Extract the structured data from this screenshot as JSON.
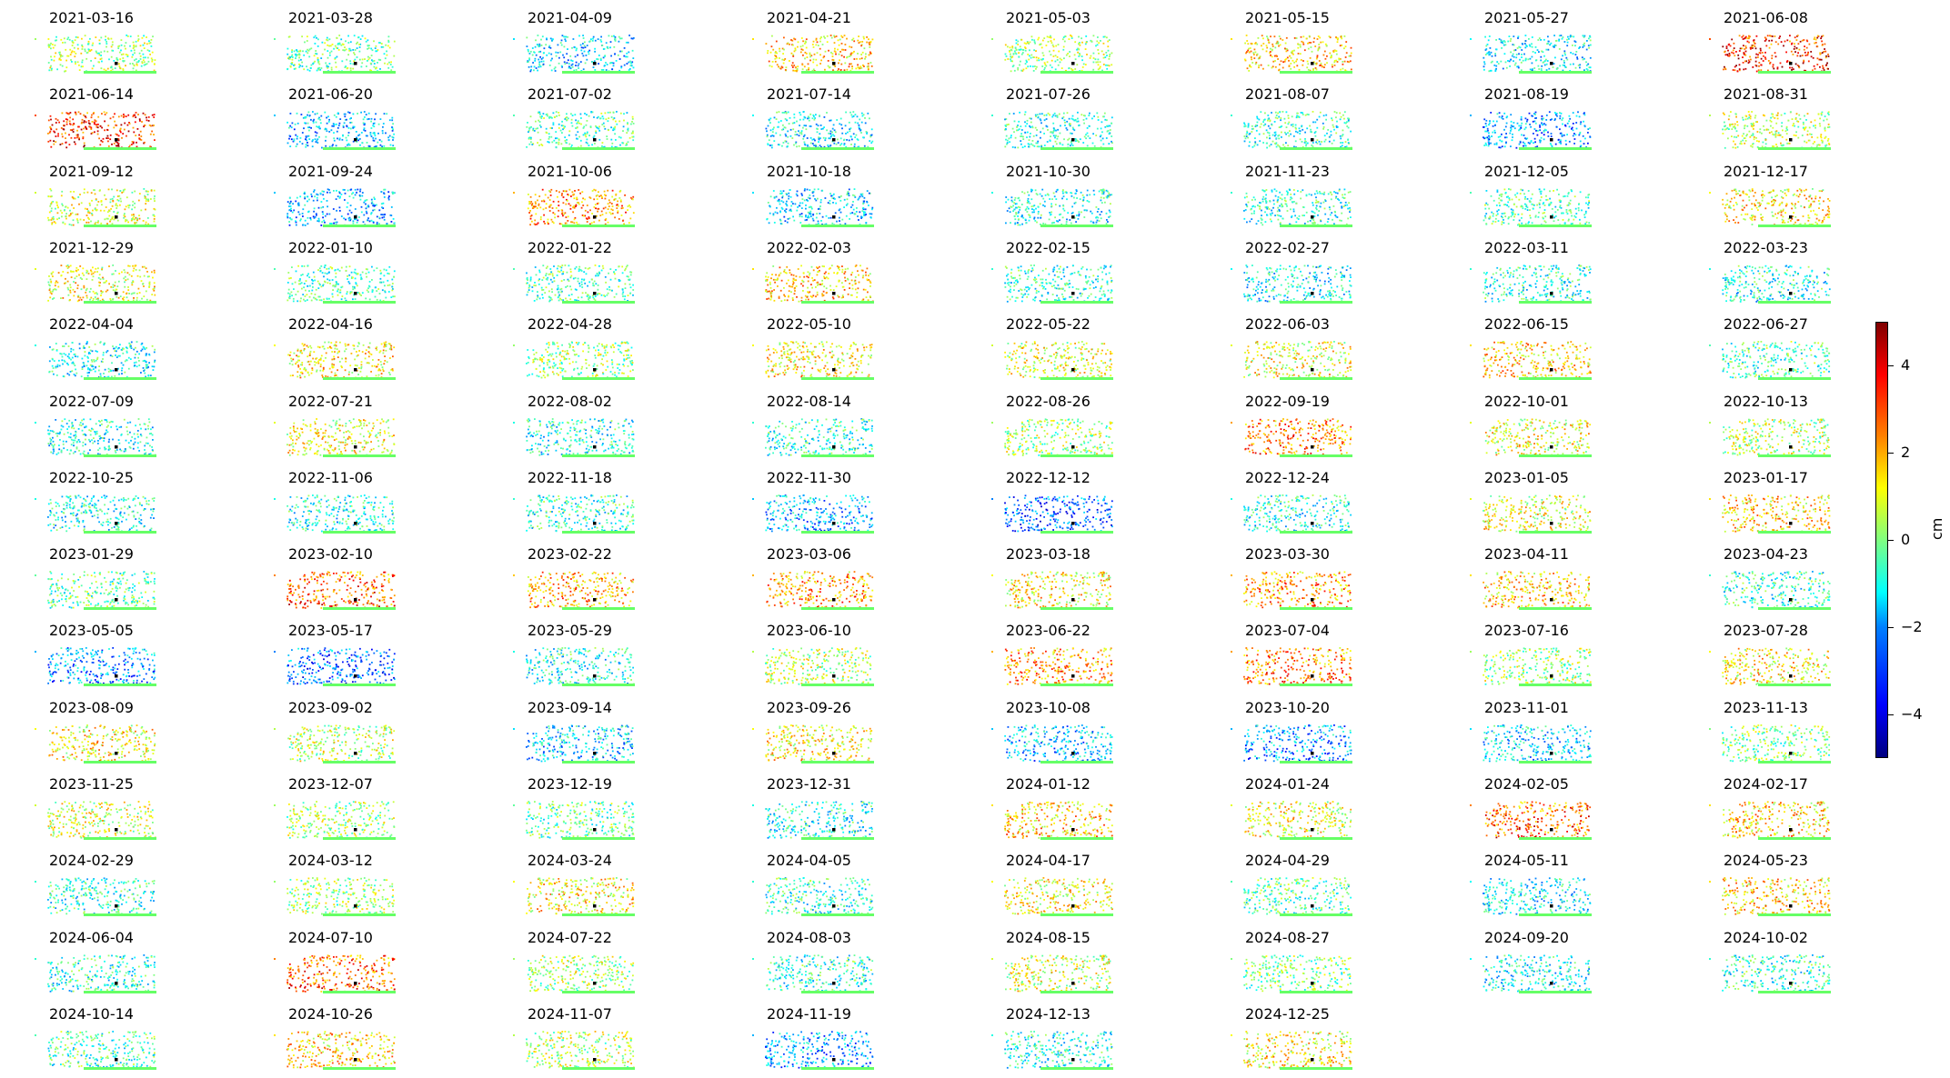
{
  "chart_data": {
    "type": "scatter",
    "title": "",
    "colormap": "jet",
    "colorbar": {
      "label": "cm",
      "range": [
        -5,
        5
      ],
      "ticks": [
        4,
        2,
        0,
        -2,
        -4
      ],
      "tick_labels": [
        "4",
        "2",
        "0",
        "−2",
        "−4"
      ]
    },
    "panels": [
      {
        "date": "2021-03-16",
        "mean": 0.3
      },
      {
        "date": "2021-03-28",
        "mean": -0.3
      },
      {
        "date": "2021-04-09",
        "mean": -1.5
      },
      {
        "date": "2021-04-21",
        "mean": 1.5
      },
      {
        "date": "2021-05-03",
        "mean": 0.2
      },
      {
        "date": "2021-05-15",
        "mean": 1.5
      },
      {
        "date": "2021-05-27",
        "mean": -1.2
      },
      {
        "date": "2021-06-08",
        "mean": 3.0
      },
      {
        "date": "2021-06-14",
        "mean": 3.0
      },
      {
        "date": "2021-06-20",
        "mean": -1.8
      },
      {
        "date": "2021-07-02",
        "mean": -0.5
      },
      {
        "date": "2021-07-14",
        "mean": -1.2
      },
      {
        "date": "2021-07-26",
        "mean": -0.8
      },
      {
        "date": "2021-08-07",
        "mean": -0.8
      },
      {
        "date": "2021-08-19",
        "mean": -2.0
      },
      {
        "date": "2021-08-31",
        "mean": 0.5
      },
      {
        "date": "2021-09-12",
        "mean": 0.8
      },
      {
        "date": "2021-09-24",
        "mean": -1.8
      },
      {
        "date": "2021-10-06",
        "mean": 2.0
      },
      {
        "date": "2021-10-18",
        "mean": -1.5
      },
      {
        "date": "2021-10-30",
        "mean": -1.0
      },
      {
        "date": "2021-11-23",
        "mean": -0.8
      },
      {
        "date": "2021-12-05",
        "mean": -0.5
      },
      {
        "date": "2021-12-17",
        "mean": 1.2
      },
      {
        "date": "2021-12-29",
        "mean": 1.0
      },
      {
        "date": "2022-01-10",
        "mean": -0.5
      },
      {
        "date": "2022-01-22",
        "mean": -0.5
      },
      {
        "date": "2022-02-03",
        "mean": 1.5
      },
      {
        "date": "2022-02-15",
        "mean": -0.8
      },
      {
        "date": "2022-02-27",
        "mean": -1.2
      },
      {
        "date": "2022-03-11",
        "mean": -0.8
      },
      {
        "date": "2022-03-23",
        "mean": -1.0
      },
      {
        "date": "2022-04-04",
        "mean": -1.0
      },
      {
        "date": "2022-04-16",
        "mean": 1.2
      },
      {
        "date": "2022-04-28",
        "mean": 0.2
      },
      {
        "date": "2022-05-10",
        "mean": 1.2
      },
      {
        "date": "2022-05-22",
        "mean": 0.8
      },
      {
        "date": "2022-06-03",
        "mean": 1.0
      },
      {
        "date": "2022-06-15",
        "mean": 1.5
      },
      {
        "date": "2022-06-27",
        "mean": -0.5
      },
      {
        "date": "2022-07-09",
        "mean": -1.0
      },
      {
        "date": "2022-07-21",
        "mean": 1.0
      },
      {
        "date": "2022-08-02",
        "mean": -1.0
      },
      {
        "date": "2022-08-14",
        "mean": -0.8
      },
      {
        "date": "2022-08-26",
        "mean": 0.3
      },
      {
        "date": "2022-09-19",
        "mean": 2.2
      },
      {
        "date": "2022-10-01",
        "mean": 1.0
      },
      {
        "date": "2022-10-13",
        "mean": 0.5
      },
      {
        "date": "2022-10-25",
        "mean": -1.0
      },
      {
        "date": "2022-11-06",
        "mean": -1.0
      },
      {
        "date": "2022-11-18",
        "mean": -0.8
      },
      {
        "date": "2022-11-30",
        "mean": -1.8
      },
      {
        "date": "2022-12-12",
        "mean": -2.5
      },
      {
        "date": "2022-12-24",
        "mean": -1.0
      },
      {
        "date": "2023-01-05",
        "mean": 1.0
      },
      {
        "date": "2023-01-17",
        "mean": 1.5
      },
      {
        "date": "2023-01-29",
        "mean": -0.3
      },
      {
        "date": "2023-02-10",
        "mean": 2.5
      },
      {
        "date": "2023-02-22",
        "mean": 1.8
      },
      {
        "date": "2023-03-06",
        "mean": 2.0
      },
      {
        "date": "2023-03-18",
        "mean": 1.2
      },
      {
        "date": "2023-03-30",
        "mean": 2.0
      },
      {
        "date": "2023-04-11",
        "mean": 1.5
      },
      {
        "date": "2023-04-23",
        "mean": -0.8
      },
      {
        "date": "2023-05-05",
        "mean": -2.0
      },
      {
        "date": "2023-05-17",
        "mean": -2.5
      },
      {
        "date": "2023-05-29",
        "mean": -1.0
      },
      {
        "date": "2023-06-10",
        "mean": 0.5
      },
      {
        "date": "2023-06-22",
        "mean": 2.0
      },
      {
        "date": "2023-07-04",
        "mean": 2.2
      },
      {
        "date": "2023-07-16",
        "mean": 0.3
      },
      {
        "date": "2023-07-28",
        "mean": 1.2
      },
      {
        "date": "2023-08-09",
        "mean": 1.2
      },
      {
        "date": "2023-09-02",
        "mean": 0.5
      },
      {
        "date": "2023-09-14",
        "mean": -1.5
      },
      {
        "date": "2023-09-26",
        "mean": 1.2
      },
      {
        "date": "2023-10-08",
        "mean": -1.8
      },
      {
        "date": "2023-10-20",
        "mean": -2.0
      },
      {
        "date": "2023-11-01",
        "mean": -1.5
      },
      {
        "date": "2023-11-13",
        "mean": 0.0
      },
      {
        "date": "2023-11-25",
        "mean": 0.8
      },
      {
        "date": "2023-12-07",
        "mean": 0.3
      },
      {
        "date": "2023-12-19",
        "mean": -0.3
      },
      {
        "date": "2023-12-31",
        "mean": -1.0
      },
      {
        "date": "2024-01-12",
        "mean": 1.5
      },
      {
        "date": "2024-01-24",
        "mean": 1.0
      },
      {
        "date": "2024-02-05",
        "mean": 2.5
      },
      {
        "date": "2024-02-17",
        "mean": 1.5
      },
      {
        "date": "2024-02-29",
        "mean": -0.8
      },
      {
        "date": "2024-03-12",
        "mean": 0.2
      },
      {
        "date": "2024-03-24",
        "mean": 1.2
      },
      {
        "date": "2024-04-05",
        "mean": -0.8
      },
      {
        "date": "2024-04-17",
        "mean": 1.2
      },
      {
        "date": "2024-04-29",
        "mean": -0.5
      },
      {
        "date": "2024-05-11",
        "mean": -1.2
      },
      {
        "date": "2024-05-23",
        "mean": 1.5
      },
      {
        "date": "2024-06-04",
        "mean": -0.8
      },
      {
        "date": "2024-07-10",
        "mean": 2.5
      },
      {
        "date": "2024-07-22",
        "mean": 0.3
      },
      {
        "date": "2024-08-03",
        "mean": -0.8
      },
      {
        "date": "2024-08-15",
        "mean": 0.8
      },
      {
        "date": "2024-08-27",
        "mean": 0.0
      },
      {
        "date": "2024-09-20",
        "mean": -1.2
      },
      {
        "date": "2024-10-02",
        "mean": -0.8
      },
      {
        "date": "2024-10-14",
        "mean": -0.5
      },
      {
        "date": "2024-10-26",
        "mean": 1.5
      },
      {
        "date": "2024-11-07",
        "mean": 0.5
      },
      {
        "date": "2024-11-19",
        "mean": -2.0
      },
      {
        "date": "2024-12-13",
        "mean": -1.0
      },
      {
        "date": "2024-12-25",
        "mean": 1.2
      }
    ]
  }
}
